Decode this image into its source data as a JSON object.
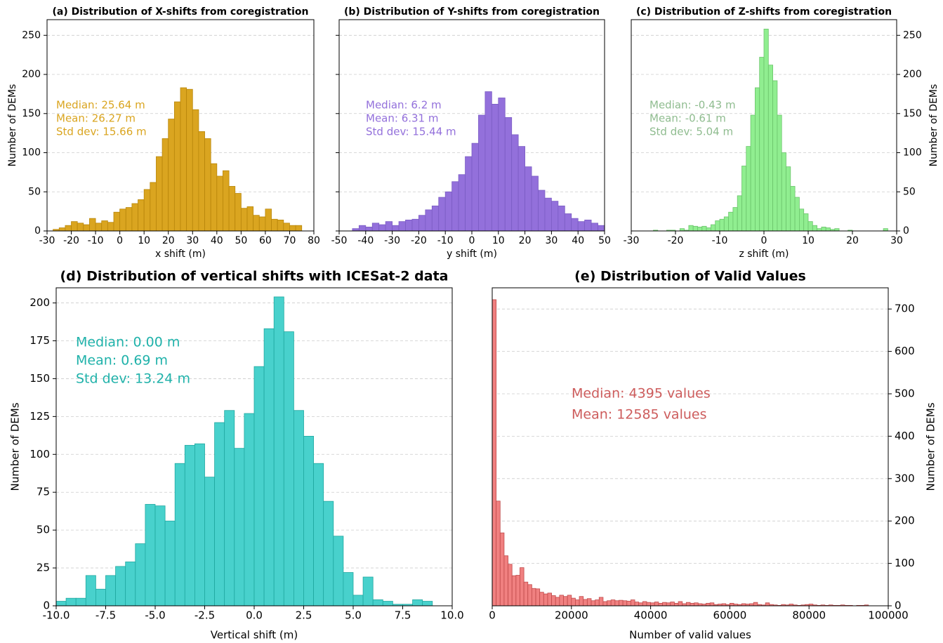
{
  "chart_data": [
    {
      "type": "histogram",
      "title": "(a) Distribution of X-shifts from coregistration",
      "xlabel": "x shift (m)",
      "ylabel": "Number of DEMs",
      "yaxis": "left",
      "color": "#daa520",
      "edgecolor": "#b8860b",
      "text_color": "#daa520",
      "grid": true,
      "annotations": [
        "Median: 25.64 m",
        "Mean: 26.27 m",
        "Std dev: 15.66 m"
      ],
      "xlim": [
        -30,
        80
      ],
      "xticks": [
        -30,
        -20,
        -10,
        0,
        10,
        20,
        30,
        40,
        50,
        60,
        70,
        80
      ],
      "ylim": [
        0,
        270
      ],
      "yticks": [
        0,
        50,
        100,
        150,
        200,
        250
      ],
      "bins": [
        -27.5,
        -25,
        -22.5,
        -20,
        -17.5,
        -15,
        -12.5,
        -10,
        -7.5,
        -5,
        -2.5,
        0,
        2.5,
        5,
        7.5,
        10,
        12.5,
        15,
        17.5,
        20,
        22.5,
        25,
        27.5,
        30,
        32.5,
        35,
        37.5,
        40,
        42.5,
        45,
        47.5,
        50,
        52.5,
        55,
        57.5,
        60,
        62.5,
        65,
        67.5,
        70,
        72.5,
        75
      ],
      "values": [
        2,
        4,
        7,
        12,
        10,
        8,
        16,
        10,
        13,
        11,
        24,
        28,
        30,
        35,
        40,
        53,
        62,
        95,
        118,
        143,
        165,
        183,
        181,
        155,
        127,
        118,
        86,
        70,
        77,
        57,
        48,
        29,
        31,
        20,
        18,
        28,
        15,
        14,
        10,
        7,
        7
      ]
    },
    {
      "type": "histogram",
      "title": "(b) Distribution of Y-shifts from coregistration",
      "xlabel": "y shift (m)",
      "yaxis": "hidden",
      "color": "#9370db",
      "edgecolor": "#7b5cc4",
      "text_color": "#9370db",
      "grid": true,
      "annotations": [
        "Median: 6.2 m",
        "Mean: 6.31 m",
        "Std dev: 15.44 m"
      ],
      "xlim": [
        -50,
        50
      ],
      "xticks": [
        -50,
        -40,
        -30,
        -20,
        -10,
        0,
        10,
        20,
        30,
        40,
        50
      ],
      "ylim": [
        0,
        270
      ],
      "yticks": [
        0,
        50,
        100,
        150,
        200,
        250
      ],
      "bins": [
        -45,
        -42.5,
        -40,
        -37.5,
        -35,
        -32.5,
        -30,
        -27.5,
        -25,
        -22.5,
        -20,
        -17.5,
        -15,
        -12.5,
        -10,
        -7.5,
        -5,
        -2.5,
        0,
        2.5,
        5,
        7.5,
        10,
        12.5,
        15,
        17.5,
        20,
        22.5,
        25,
        27.5,
        30,
        32.5,
        35,
        37.5,
        40,
        42.5,
        45,
        47.5,
        50
      ],
      "values": [
        3,
        7,
        5,
        10,
        8,
        12,
        7,
        12,
        14,
        15,
        20,
        27,
        32,
        43,
        50,
        63,
        72,
        95,
        112,
        148,
        178,
        162,
        170,
        145,
        123,
        108,
        82,
        70,
        52,
        42,
        38,
        32,
        22,
        16,
        12,
        14,
        10,
        7
      ]
    },
    {
      "type": "histogram",
      "title": "(c) Distribution of Z-shifts from coregistration",
      "xlabel": "z shift (m)",
      "ylabel": "Number of DEMs",
      "yaxis": "right",
      "color": "#90ee90",
      "edgecolor": "#6cc46c",
      "text_color": "#8fbc8f",
      "grid": true,
      "annotations": [
        "Median: -0.43 m",
        "Mean: -0.61 m",
        "Std dev: 5.04 m"
      ],
      "xlim": [
        -30,
        30
      ],
      "xticks": [
        -30,
        -20,
        -10,
        0,
        10,
        20,
        30
      ],
      "ylim": [
        0,
        270
      ],
      "yticks": [
        0,
        50,
        100,
        150,
        200,
        250
      ],
      "bins": [
        -25,
        -24,
        -23,
        -22,
        -21,
        -20,
        -19,
        -18,
        -17,
        -16,
        -15,
        -14,
        -13,
        -12,
        -11,
        -10,
        -9,
        -8,
        -7,
        -6,
        -5,
        -4,
        -3,
        -2,
        -1,
        0,
        1,
        2,
        3,
        4,
        5,
        6,
        7,
        8,
        9,
        10,
        11,
        12,
        13,
        14,
        15,
        16,
        17,
        18,
        19,
        20,
        21,
        22,
        23,
        24,
        25,
        26,
        27,
        28
      ],
      "values": [
        1,
        0,
        0,
        1,
        1,
        0,
        3,
        1,
        7,
        6,
        5,
        6,
        4,
        8,
        13,
        15,
        18,
        24,
        30,
        45,
        83,
        108,
        148,
        183,
        222,
        258,
        212,
        192,
        148,
        100,
        82,
        57,
        43,
        28,
        22,
        12,
        7,
        3,
        5,
        4,
        2,
        3,
        0,
        0,
        1,
        0,
        0,
        0,
        0,
        0,
        0,
        0,
        3
      ]
    },
    {
      "type": "histogram",
      "title": "(d) Distribution of vertical shifts with ICESat-2 data",
      "xlabel": "Vertical shift (m)",
      "ylabel": "Number of DEMs",
      "yaxis": "left",
      "color": "#48d1cc",
      "edgecolor": "#20a8a0",
      "text_color": "#20b2aa",
      "grid": true,
      "annotations": [
        "Median: 0.00 m",
        "Mean: 0.69 m",
        "Std dev: 13.24 m"
      ],
      "xlim": [
        -10,
        10
      ],
      "xticks": [
        {
          "value": -10,
          "label": "-10.0"
        },
        -7.5,
        {
          "value": -5,
          "label": "-5.0"
        },
        -2.5,
        {
          "value": 0,
          "label": "0.0"
        },
        2.5,
        {
          "value": 5,
          "label": "5.0"
        },
        7.5,
        {
          "value": 10,
          "label": "10.0"
        }
      ],
      "ylim": [
        0,
        210
      ],
      "yticks": [
        0,
        25,
        50,
        75,
        100,
        125,
        150,
        175,
        200
      ],
      "bins": [
        -10,
        -9.5,
        -9,
        -8.5,
        -8,
        -7.5,
        -7,
        -6.5,
        -6,
        -5.5,
        -5,
        -4.5,
        -4,
        -3.5,
        -3,
        -2.5,
        -2,
        -1.5,
        -1,
        -0.5,
        0,
        0.5,
        1,
        1.5,
        2,
        2.5,
        3,
        3.5,
        4,
        4.5,
        5,
        5.5,
        6,
        6.5,
        7,
        7.5,
        8,
        8.5,
        9
      ],
      "values": [
        3,
        5,
        5,
        20,
        11,
        20,
        26,
        29,
        41,
        67,
        66,
        56,
        94,
        106,
        107,
        85,
        121,
        129,
        104,
        127,
        158,
        183,
        204,
        181,
        129,
        112,
        94,
        69,
        46,
        22,
        7,
        19,
        4,
        3,
        1,
        1,
        4,
        3
      ]
    },
    {
      "type": "histogram",
      "title": "(e) Distribution of Valid Values",
      "xlabel": "Number of valid values",
      "ylabel": "Number of DEMs",
      "yaxis": "right",
      "color": "#f08080",
      "edgecolor": "#c04a4a",
      "text_color": "#cd5c5c",
      "grid": true,
      "annotations": [
        "Median: 4395 values",
        "Mean: 12585 values"
      ],
      "xlim": [
        0,
        100000
      ],
      "xticks": [
        0,
        20000,
        40000,
        60000,
        80000,
        100000
      ],
      "ylim": [
        0,
        750
      ],
      "yticks": [
        0,
        100,
        200,
        300,
        400,
        500,
        600,
        700
      ],
      "bins": [
        0,
        1000,
        2000,
        3000,
        4000,
        5000,
        6000,
        7000,
        8000,
        9000,
        10000,
        11000,
        12000,
        13000,
        14000,
        15000,
        16000,
        17000,
        18000,
        19000,
        20000,
        21000,
        22000,
        23000,
        24000,
        25000,
        26000,
        27000,
        28000,
        29000,
        30000,
        31000,
        32000,
        33000,
        34000,
        35000,
        36000,
        37000,
        38000,
        39000,
        40000,
        41000,
        42000,
        43000,
        44000,
        45000,
        46000,
        47000,
        48000,
        49000,
        50000,
        51000,
        52000,
        53000,
        54000,
        55000,
        56000,
        57000,
        58000,
        59000,
        60000,
        61000,
        62000,
        63000,
        64000,
        65000,
        66000,
        67000,
        68000,
        69000,
        70000,
        71000,
        72000,
        73000,
        74000,
        75000,
        76000,
        77000,
        78000,
        79000,
        80000,
        81000,
        82000,
        83000,
        84000,
        85000,
        86000,
        87000,
        88000,
        89000,
        90000,
        91000,
        92000,
        93000,
        94000,
        95000
      ],
      "values": [
        722,
        247,
        172,
        118,
        98,
        71,
        72,
        90,
        56,
        50,
        41,
        40,
        32,
        28,
        30,
        24,
        20,
        25,
        22,
        25,
        18,
        14,
        22,
        15,
        17,
        12,
        14,
        20,
        10,
        12,
        14,
        12,
        13,
        12,
        11,
        14,
        9,
        7,
        10,
        8,
        7,
        9,
        6,
        8,
        7,
        9,
        6,
        10,
        5,
        8,
        6,
        7,
        5,
        4,
        6,
        7,
        3,
        4,
        5,
        3,
        6,
        4,
        3,
        5,
        4,
        5,
        8,
        3,
        2,
        7,
        3,
        2,
        1,
        3,
        2,
        4,
        2,
        1,
        2,
        3,
        4,
        2,
        1,
        2,
        1,
        2,
        1,
        1,
        2,
        1,
        1,
        0,
        1,
        1,
        2
      ]
    }
  ]
}
